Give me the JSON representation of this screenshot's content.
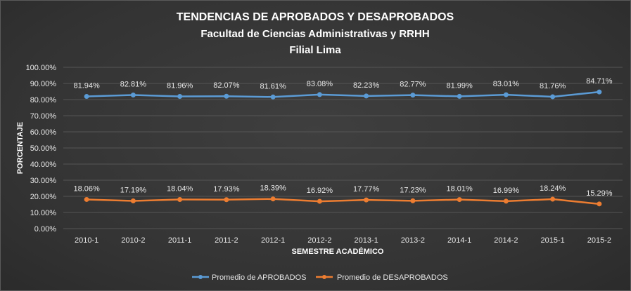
{
  "colors": {
    "aprobados": "#5b9bd5",
    "desaprobados": "#ed7d31",
    "background": "#3a3a3a",
    "grid": "#555555",
    "text": "#e8e8e8"
  },
  "chart_data": {
    "type": "line",
    "title": "TENDENCIAS DE APROBADOS Y DESAPROBADOS",
    "subtitle_1": "Facultad de Ciencias Administrativas y RRHH",
    "subtitle_2": "Filial Lima",
    "xlabel": "SEMESTRE ACADÉMICO",
    "ylabel": "PORCENTAJE",
    "ylim": [
      0,
      100
    ],
    "yticks": [
      "0.00%",
      "10.00%",
      "20.00%",
      "30.00%",
      "40.00%",
      "50.00%",
      "60.00%",
      "70.00%",
      "80.00%",
      "90.00%",
      "100.00%"
    ],
    "grid": true,
    "legend_position": "bottom",
    "categories": [
      "2010-1",
      "2010-2",
      "2011-1",
      "2011-2",
      "2012-1",
      "2012-2",
      "2013-1",
      "2013-2",
      "2014-1",
      "2014-2",
      "2015-1",
      "2015-2"
    ],
    "series": [
      {
        "name": "Promedio de APROBADOS",
        "color_key": "aprobados",
        "values": [
          81.94,
          82.81,
          81.96,
          82.07,
          81.61,
          83.08,
          82.23,
          82.77,
          81.99,
          83.01,
          81.76,
          84.71
        ],
        "labels": [
          "81.94%",
          "82.81%",
          "81.96%",
          "82.07%",
          "81.61%",
          "83.08%",
          "82.23%",
          "82.77%",
          "81.99%",
          "83.01%",
          "81.76%",
          "84.71%"
        ]
      },
      {
        "name": "Promedio de DESAPROBADOS",
        "color_key": "desaprobados",
        "values": [
          18.06,
          17.19,
          18.04,
          17.93,
          18.39,
          16.92,
          17.77,
          17.23,
          18.01,
          16.99,
          18.24,
          15.29
        ],
        "labels": [
          "18.06%",
          "17.19%",
          "18.04%",
          "17.93%",
          "18.39%",
          "16.92%",
          "17.77%",
          "17.23%",
          "18.01%",
          "16.99%",
          "18.24%",
          "15.29%"
        ]
      }
    ]
  }
}
